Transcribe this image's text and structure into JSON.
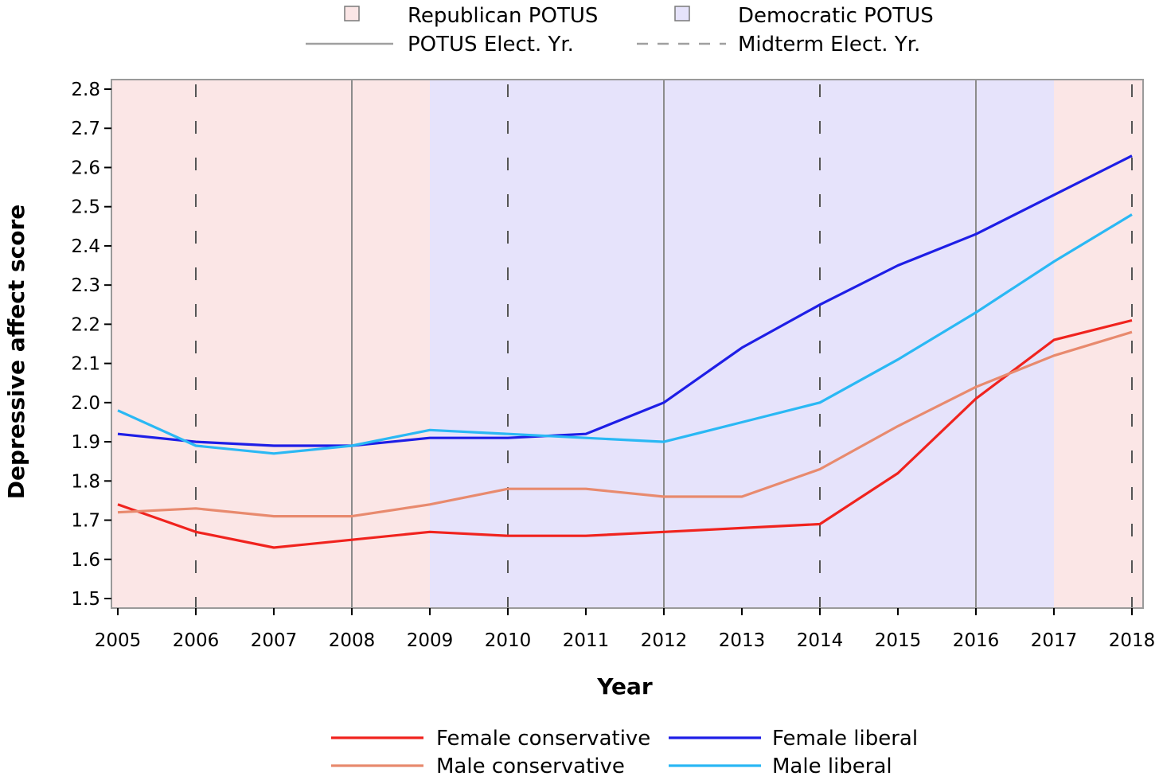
{
  "chart_data": {
    "type": "line",
    "xlabel": "Year",
    "ylabel": "Depressive affect score",
    "xlim": [
      2005,
      2018
    ],
    "ylim": [
      1.5,
      2.8
    ],
    "x_ticks": [
      "2005",
      "2006",
      "2007",
      "2008",
      "2009",
      "2010",
      "2011",
      "2012",
      "2013",
      "2014",
      "2015",
      "2016",
      "2017",
      "2018"
    ],
    "y_ticks": [
      "1.5",
      "1.6",
      "1.7",
      "1.8",
      "1.9",
      "2.0",
      "2.1",
      "2.2",
      "2.3",
      "2.4",
      "2.5",
      "2.6",
      "2.7",
      "2.8"
    ],
    "x": [
      2005,
      2006,
      2007,
      2008,
      2009,
      2010,
      2011,
      2012,
      2013,
      2014,
      2015,
      2016,
      2017,
      2018
    ],
    "series": [
      {
        "name": "Female conservative",
        "color": "#f0231e",
        "values": [
          1.74,
          1.67,
          1.63,
          1.65,
          1.67,
          1.66,
          1.66,
          1.67,
          1.68,
          1.69,
          1.82,
          2.01,
          2.16,
          2.21
        ]
      },
      {
        "name": "Female liberal",
        "color": "#1e1ee6",
        "values": [
          1.92,
          1.9,
          1.89,
          1.89,
          1.91,
          1.91,
          1.92,
          2.0,
          2.14,
          2.25,
          2.35,
          2.43,
          2.53,
          2.63
        ]
      },
      {
        "name": "Male conservative",
        "color": "#e88a6e",
        "values": [
          1.72,
          1.73,
          1.71,
          1.71,
          1.74,
          1.78,
          1.78,
          1.76,
          1.76,
          1.83,
          1.94,
          2.04,
          2.12,
          2.18
        ]
      },
      {
        "name": "Male liberal",
        "color": "#2ab8f4",
        "values": [
          1.98,
          1.89,
          1.87,
          1.89,
          1.93,
          1.92,
          1.91,
          1.9,
          1.95,
          2.0,
          2.11,
          2.23,
          2.36,
          2.48
        ]
      }
    ],
    "shaded_periods": [
      {
        "label": "Republican POTUS",
        "start": 2005,
        "end": 2009,
        "color": "#fbe6e6"
      },
      {
        "label": "Democratic POTUS",
        "start": 2009,
        "end": 2017,
        "color": "#e6e3fb"
      },
      {
        "label": "Republican POTUS",
        "start": 2017,
        "end": 2018,
        "color": "#fbe6e6"
      }
    ],
    "reference_lines": [
      {
        "year": 2008,
        "style": "solid"
      },
      {
        "year": 2012,
        "style": "solid"
      },
      {
        "year": 2016,
        "style": "solid"
      },
      {
        "year": 2006,
        "style": "dashed"
      },
      {
        "year": 2010,
        "style": "dashed"
      },
      {
        "year": 2014,
        "style": "dashed"
      },
      {
        "year": 2018,
        "style": "dashed"
      }
    ],
    "legend_top": {
      "republican_label": "Republican POTUS",
      "democratic_label": "Democratic POTUS",
      "potus_line_label": "POTUS Elect. Yr.",
      "midterm_line_label": "Midterm Elect. Yr.",
      "republican_color": "#fbe6e6",
      "democratic_color": "#e6e3fb",
      "ref_line_color": "#a0a0a0"
    },
    "legend_bottom": [
      "Female conservative",
      "Female liberal",
      "Male conservative",
      "Male liberal"
    ],
    "plot_border_color": "#9a9a9a",
    "grid": false
  }
}
